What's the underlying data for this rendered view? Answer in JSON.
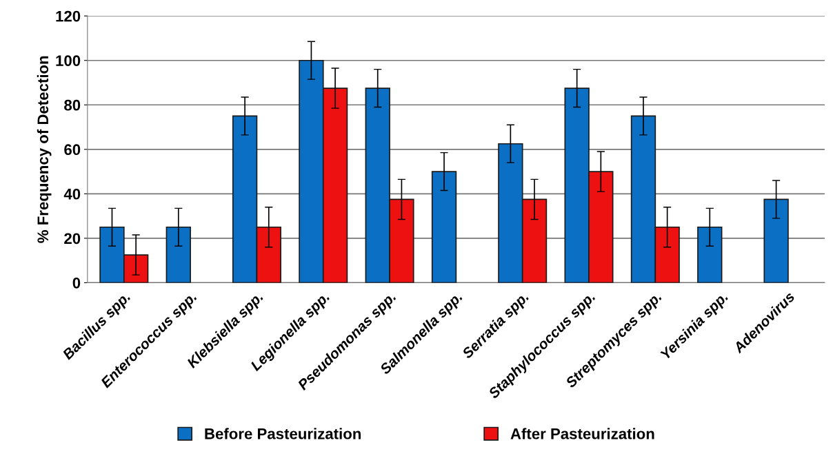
{
  "chart_data": {
    "type": "bar",
    "ylabel": "% Frequency of Detection",
    "categories": [
      "Bacillus spp.",
      "Enterococcus spp.",
      "Klebsiella spp.",
      "Legionella spp.",
      "Pseudomonas spp.",
      "Salmonella spp.",
      "Serratia spp.",
      "Staphylococcus spp.",
      "Streptomyces spp.",
      "Yersinia spp.",
      "Adenovirus"
    ],
    "series": [
      {
        "name": "Before Pasteurization",
        "color": "#0b6fc4",
        "values": [
          25,
          25,
          75,
          100,
          87.5,
          50,
          62.5,
          87.5,
          75,
          25,
          37.5
        ],
        "errors": [
          8.5,
          8.5,
          8.5,
          8.5,
          8.5,
          8.5,
          8.5,
          8.5,
          8.5,
          8.5,
          8.5
        ]
      },
      {
        "name": "After Pasteurization",
        "color": "#ee1111",
        "values": [
          12.5,
          null,
          25,
          87.5,
          37.5,
          null,
          37.5,
          50,
          25,
          null,
          null
        ],
        "errors": [
          9,
          null,
          9,
          9,
          9,
          null,
          9,
          9,
          9,
          null,
          null
        ]
      }
    ],
    "ylim": [
      0,
      120
    ],
    "yticks": [
      0,
      20,
      40,
      60,
      80,
      100,
      120
    ],
    "grid": "y",
    "legend": "bottom"
  }
}
